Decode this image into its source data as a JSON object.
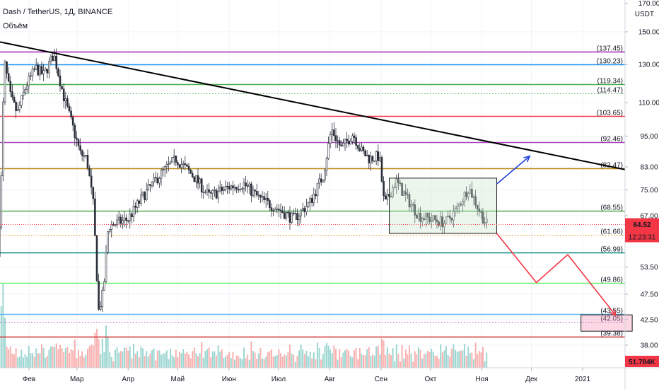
{
  "header": {
    "title": "Dash / TetherUS, 1Д, BINANCE",
    "volume_label": "Объём"
  },
  "chart_data": {
    "type": "candlestick",
    "y_axis": {
      "unit": "USDT",
      "scale": "log",
      "ticks": [
        "170.00",
        "150.00",
        "130.00",
        "110.00",
        "95.00",
        "83.00",
        "75.00",
        "67.00",
        "53.50",
        "47.50",
        "42.50",
        "38.00"
      ]
    },
    "x_axis": {
      "ticks": [
        "Фев",
        "Мар",
        "Апр",
        "Май",
        "Июн",
        "Июл",
        "Авг",
        "Сен",
        "Окт",
        "Ноя",
        "Дек",
        "2021"
      ]
    },
    "levels": [
      {
        "value": 137.45,
        "label": "(137.45)",
        "color": "#9c27b0",
        "style": "solid"
      },
      {
        "value": 130.23,
        "label": "(130.23)",
        "color": "#2196f3",
        "style": "solid"
      },
      {
        "value": 119.34,
        "label": "(119.34)",
        "color": "#4caf50",
        "style": "solid"
      },
      {
        "value": 114.47,
        "label": "(114.47)",
        "color": "#4caf50",
        "style": "dotted"
      },
      {
        "value": 103.65,
        "label": "(103.65)",
        "color": "#f23645",
        "style": "solid"
      },
      {
        "value": 92.46,
        "label": "(92.46)",
        "color": "#ab47bc",
        "style": "solid"
      },
      {
        "value": 82.47,
        "label": "(82.47)",
        "color": "#b8860b",
        "style": "solid"
      },
      {
        "value": 68.55,
        "label": "(68.55)",
        "color": "#4caf50",
        "style": "solid"
      },
      {
        "value": 61.66,
        "label": "(61.66)",
        "color": "#e68a00",
        "style": "dotted"
      },
      {
        "value": 56.99,
        "label": "(56.99)",
        "color": "#00897b",
        "style": "solid"
      },
      {
        "value": 49.86,
        "label": "(49.86)",
        "color": "#69f06e",
        "style": "solid"
      },
      {
        "value": 43.55,
        "label": "(43.55)",
        "color": "#64b5f6",
        "style": "solid"
      },
      {
        "value": 42.05,
        "label": "(42.05)",
        "color": "#ab47bc",
        "style": "dotted"
      },
      {
        "value": 39.38,
        "label": "(39.38)",
        "color": "#d32f2f",
        "style": "solid"
      }
    ],
    "current_price": {
      "value": 64.52,
      "label": "64.52",
      "countdown": "12:23:31",
      "color": "#f23645"
    },
    "volume_badge": {
      "label": "51.784K",
      "color": "#f23645"
    },
    "trendline": {
      "from": {
        "date": "2020-01-12",
        "price": 144
      },
      "to": {
        "date": "2021-01-31",
        "price": 81.5
      },
      "color": "#000000"
    },
    "consolidation_box": {
      "from_date": "2020-09-06",
      "to_date": "2020-11-10",
      "top": 79,
      "bottom": 62
    },
    "target_box": {
      "from_date": "2020-12-31",
      "to_date": "2021-01-31",
      "top": 43.4,
      "bottom": 40.4
    },
    "projections": [
      {
        "color": "#1e40d8",
        "points": [
          {
            "date": "2020-11-10",
            "price": 77
          },
          {
            "date": "2020-11-30",
            "price": 87
          }
        ],
        "arrow": true
      },
      {
        "color": "#f23645",
        "points": [
          {
            "date": "2020-11-10",
            "price": 62
          },
          {
            "date": "2020-12-04",
            "price": 50
          },
          {
            "date": "2020-12-23",
            "price": 56.5
          },
          {
            "date": "2021-01-21",
            "price": 43.3
          }
        ],
        "arrow": true
      }
    ],
    "candle_colors": {
      "up": "#26a69a",
      "down": "#ef5350"
    },
    "price_path": [
      {
        "date": "2020-01-13",
        "price": 56
      },
      {
        "date": "2020-01-15",
        "price": 74
      },
      {
        "date": "2020-01-17",
        "price": 132
      },
      {
        "date": "2020-01-21",
        "price": 112
      },
      {
        "date": "2020-01-25",
        "price": 105
      },
      {
        "date": "2020-01-30",
        "price": 118
      },
      {
        "date": "2020-02-05",
        "price": 128
      },
      {
        "date": "2020-02-10",
        "price": 124
      },
      {
        "date": "2020-02-16",
        "price": 136
      },
      {
        "date": "2020-02-18",
        "price": 128
      },
      {
        "date": "2020-02-22",
        "price": 113
      },
      {
        "date": "2020-02-27",
        "price": 100
      },
      {
        "date": "2020-03-03",
        "price": 88
      },
      {
        "date": "2020-03-07",
        "price": 86
      },
      {
        "date": "2020-03-11",
        "price": 70
      },
      {
        "date": "2020-03-13",
        "price": 52
      },
      {
        "date": "2020-03-14",
        "price": 44
      },
      {
        "date": "2020-03-17",
        "price": 48
      },
      {
        "date": "2020-03-20",
        "price": 64
      },
      {
        "date": "2020-03-26",
        "price": 65
      },
      {
        "date": "2020-04-01",
        "price": 66
      },
      {
        "date": "2020-04-10",
        "price": 73
      },
      {
        "date": "2020-04-20",
        "price": 80
      },
      {
        "date": "2020-04-30",
        "price": 86
      },
      {
        "date": "2020-05-10",
        "price": 80
      },
      {
        "date": "2020-05-20",
        "price": 73
      },
      {
        "date": "2020-06-01",
        "price": 76
      },
      {
        "date": "2020-06-10",
        "price": 77
      },
      {
        "date": "2020-06-20",
        "price": 72
      },
      {
        "date": "2020-07-01",
        "price": 69
      },
      {
        "date": "2020-07-10",
        "price": 66
      },
      {
        "date": "2020-07-20",
        "price": 71
      },
      {
        "date": "2020-07-28",
        "price": 80
      },
      {
        "date": "2020-08-02",
        "price": 98
      },
      {
        "date": "2020-08-08",
        "price": 90
      },
      {
        "date": "2020-08-15",
        "price": 96
      },
      {
        "date": "2020-08-20",
        "price": 89
      },
      {
        "date": "2020-08-25",
        "price": 86
      },
      {
        "date": "2020-08-31",
        "price": 87
      },
      {
        "date": "2020-09-03",
        "price": 70
      },
      {
        "date": "2020-09-10",
        "price": 78
      },
      {
        "date": "2020-09-17",
        "price": 72
      },
      {
        "date": "2020-09-24",
        "price": 67
      },
      {
        "date": "2020-10-01",
        "price": 66
      },
      {
        "date": "2020-10-10",
        "price": 65
      },
      {
        "date": "2020-10-17",
        "price": 69
      },
      {
        "date": "2020-10-24",
        "price": 76
      },
      {
        "date": "2020-11-01",
        "price": 67
      },
      {
        "date": "2020-11-04",
        "price": 64.52
      }
    ],
    "volume": {
      "max_label": "51.784K"
    }
  }
}
